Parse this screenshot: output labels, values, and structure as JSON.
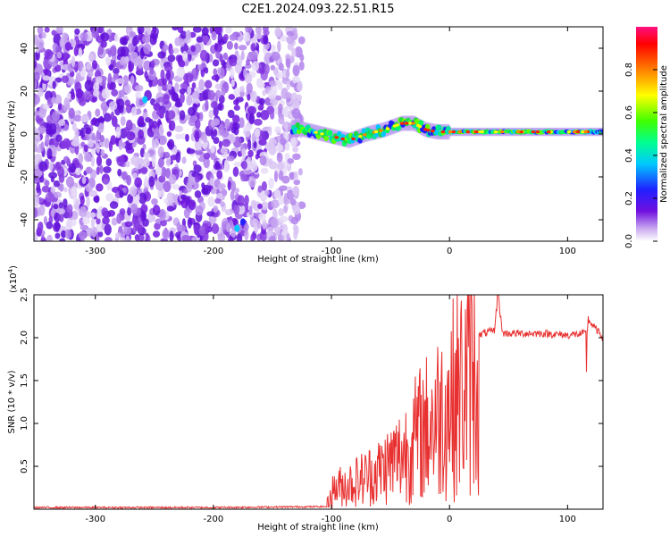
{
  "title": "C2E1.2024.093.22.51.R15",
  "chart_data": [
    {
      "type": "heatmap",
      "xlabel": "Height of straight line (km)",
      "ylabel": "Frequency (Hz)",
      "xlim": [
        -352,
        130
      ],
      "ylim": [
        -50,
        50
      ],
      "xticks": [
        -300,
        -200,
        -100,
        0,
        100
      ],
      "yticks": [
        -40,
        -20,
        0,
        20,
        40
      ],
      "colorbar": {
        "label": "Normalized spectral amplitude",
        "range": [
          0.0,
          1.0
        ],
        "ticks": [
          0.0,
          0.2,
          0.4,
          0.6,
          0.8
        ],
        "colormap": [
          "#ffffff",
          "#c8a8f0",
          "#7010e0",
          "#2020ff",
          "#00c8ff",
          "#00ff60",
          "#60ff00",
          "#ffff00",
          "#ff8000",
          "#ff0000",
          "#ff1080"
        ]
      },
      "ridge": {
        "x": [
          -130,
          -115,
          -100,
          -85,
          -70,
          -55,
          -40,
          -30,
          -20,
          -10,
          0,
          20,
          40,
          60,
          80,
          100,
          120,
          130
        ],
        "y": [
          3,
          1,
          -1,
          -3,
          0,
          2,
          5,
          5,
          2,
          1,
          1,
          1,
          1,
          1,
          1,
          1,
          1,
          1
        ]
      },
      "noise_region": {
        "x_range": [
          -352,
          -125
        ],
        "y_range": [
          -50,
          50
        ]
      }
    },
    {
      "type": "line",
      "xlabel": "Height of straight line (km)",
      "ylabel": "SNR (10 * v/v)",
      "exponent_label": "(x10",
      "exponent_power": "4",
      "exponent_close": ")",
      "xlim": [
        -352,
        130
      ],
      "ylim": [
        0,
        2.5
      ],
      "xticks": [
        -300,
        -200,
        -100,
        0,
        100
      ],
      "yticks": [
        0.5,
        1.0,
        1.5,
        2.0,
        2.5
      ],
      "color": "#e83030",
      "series": [
        {
          "x": [
            -352,
            -300,
            -200,
            -105,
            -98,
            -80,
            -60,
            -40,
            -25,
            -10,
            0,
            10,
            20,
            28,
            38,
            41,
            45,
            60,
            80,
            100,
            116,
            118,
            130
          ],
          "y": [
            0.02,
            0.02,
            0.02,
            0.03,
            0.3,
            0.4,
            0.55,
            0.8,
            1.1,
            1.35,
            1.55,
            1.75,
            1.95,
            2.05,
            2.08,
            2.5,
            2.05,
            2.05,
            2.05,
            2.03,
            2.05,
            2.2,
            2.0
          ]
        }
      ]
    }
  ]
}
